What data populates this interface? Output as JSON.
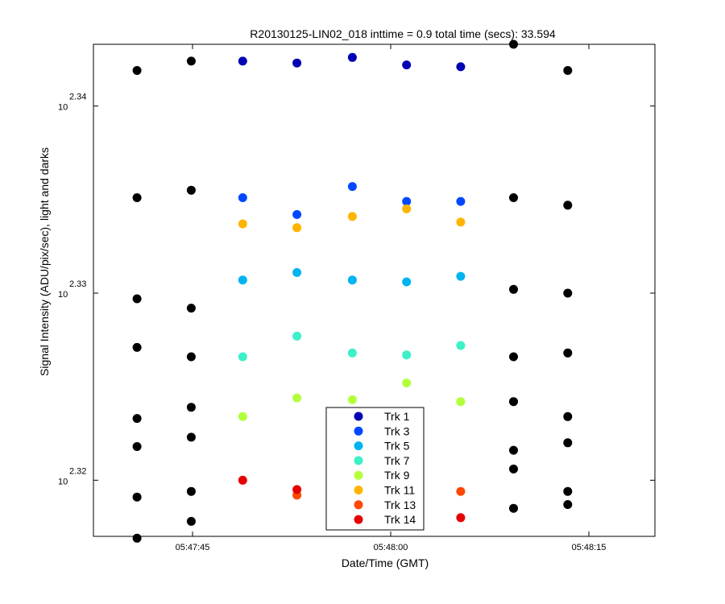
{
  "chart_data": {
    "type": "scatter",
    "title": "R20130125-LIN02_018 inttime = 0.9 total time (secs): 33.594",
    "xlabel": "Date/Time (GMT)",
    "ylabel": "Signal Intensity (ADU/pix/sec), light and darks",
    "x_tick_labels": [
      "05:47:45",
      "05:48:00",
      "05:48:15"
    ],
    "x_tick_seconds": [
      -15,
      0,
      15
    ],
    "y_tick_base": "10",
    "y_tick_exponents": [
      "2.32",
      "2.33",
      "2.34"
    ],
    "y_tick_values": [
      2.32,
      2.33,
      2.34
    ],
    "xlim": [
      -22.5,
      20.0
    ],
    "ylim": [
      2.317,
      2.3433
    ],
    "log_scale_y": true,
    "grid": false,
    "legend_position": "bottom-center",
    "legend": [
      {
        "label": "Trk 1",
        "color": "#0000b4"
      },
      {
        "label": "Trk 3",
        "color": "#0048ff"
      },
      {
        "label": "Trk 5",
        "color": "#00b4f0"
      },
      {
        "label": "Trk 7",
        "color": "#3cf0c8"
      },
      {
        "label": "Trk 9",
        "color": "#b4ff3c"
      },
      {
        "label": "Trk 11",
        "color": "#ffb400"
      },
      {
        "label": "Trk 13",
        "color": "#ff4800"
      },
      {
        "label": "Trk 14",
        "color": "#e60000"
      }
    ],
    "series": [
      {
        "color": "#0000b4",
        "x": [
          -11.2,
          -7.1,
          -2.9,
          1.2,
          5.3
        ],
        "y": [
          2.3424,
          2.3423,
          2.3426,
          2.3422,
          2.3421
        ]
      },
      {
        "color": "#0048ff",
        "x": [
          -11.2,
          -7.1,
          -2.9,
          1.2,
          5.3
        ],
        "y": [
          2.3351,
          2.3342,
          2.3357,
          2.3349,
          2.3349
        ]
      },
      {
        "color": "#00b4f0",
        "x": [
          -11.2,
          -7.1,
          -2.9,
          1.2,
          5.3
        ],
        "y": [
          2.3307,
          2.3311,
          2.3307,
          2.3306,
          2.3309
        ]
      },
      {
        "color": "#3cf0c8",
        "x": [
          -11.2,
          -7.1,
          -2.9,
          1.2,
          5.3
        ],
        "y": [
          2.3266,
          2.3277,
          2.3268,
          2.3267,
          2.3272
        ]
      },
      {
        "color": "#b4ff3c",
        "x": [
          -11.2,
          -7.1,
          -2.9,
          1.2,
          5.3
        ],
        "y": [
          2.3234,
          2.3244,
          2.3243,
          2.3252,
          2.3242
        ]
      },
      {
        "color": "#ffb400",
        "x": [
          -11.2,
          -7.1,
          -2.9,
          1.2,
          5.3
        ],
        "y": [
          2.3337,
          2.3335,
          2.3341,
          2.3345,
          2.3338
        ]
      },
      {
        "color": "#ff4800",
        "x": [
          -7.1,
          5.3
        ],
        "y": [
          2.3192,
          2.3194
        ]
      },
      {
        "color": "#e60000",
        "x": [
          -11.2,
          -7.1,
          5.3
        ],
        "y": [
          2.32,
          2.3195,
          2.318
        ]
      },
      {
        "color": "#000000",
        "x": [
          -19.2,
          -19.2,
          -19.2,
          -19.2,
          -19.2,
          -19.2,
          -19.2,
          -19.2
        ],
        "y": [
          2.3419,
          2.3351,
          2.3297,
          2.3271,
          2.3233,
          2.3218,
          2.3191,
          2.3169
        ]
      },
      {
        "color": "#000000",
        "x": [
          -15.1,
          -15.1,
          -15.1,
          -15.1,
          -15.1,
          -15.1,
          -15.1,
          -15.1
        ],
        "y": [
          2.3424,
          2.3355,
          2.3292,
          2.3266,
          2.3239,
          2.3223,
          2.3194,
          2.3178
        ]
      },
      {
        "color": "#000000",
        "x": [
          9.3,
          9.3,
          9.3,
          9.3,
          9.3,
          9.3,
          9.3,
          9.3
        ],
        "y": [
          2.3433,
          2.3351,
          2.3302,
          2.3266,
          2.3242,
          2.3216,
          2.3206,
          2.3185
        ]
      },
      {
        "color": "#000000",
        "x": [
          13.4,
          13.4,
          13.4,
          13.4,
          13.4,
          13.4,
          13.4,
          13.4
        ],
        "y": [
          2.3419,
          2.3347,
          2.33,
          2.3268,
          2.3234,
          2.322,
          2.3194,
          2.3187
        ]
      }
    ]
  }
}
